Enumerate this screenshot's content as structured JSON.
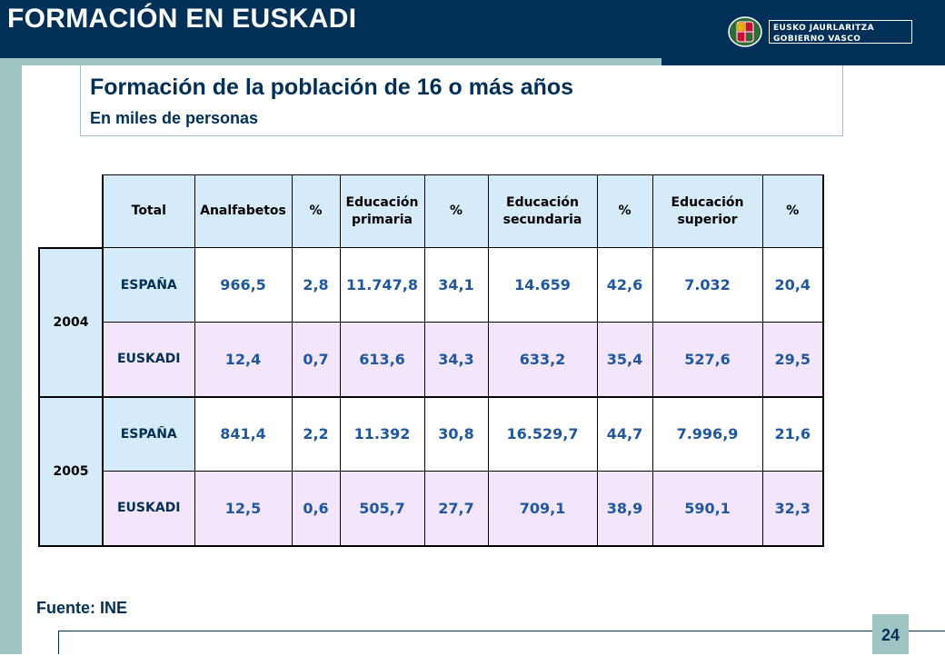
{
  "header": {
    "section_title": "FORMACIÓN EN EUSKADI",
    "logo_line1": "EUSKO JAURLARITZA",
    "logo_line2": "GOBIERNO VASCO"
  },
  "title": {
    "main": "Formación de la población de 16 o más años",
    "sub": "En miles de personas"
  },
  "table": {
    "columns": [
      "Total",
      "Analfabetos",
      "%",
      "Educación primaria",
      "%",
      "Educación secundaria",
      "%",
      "Educación superior",
      "%"
    ],
    "groups": [
      {
        "year": "2004",
        "rows": [
          {
            "label": "ESPAÑA",
            "values": [
              "966,5",
              "2,8",
              "11.747,8",
              "34,1",
              "14.659",
              "42,6",
              "7.032",
              "20,4"
            ]
          },
          {
            "label": "EUSKADI",
            "values": [
              "12,4",
              "0,7",
              "613,6",
              "34,3",
              "633,2",
              "35,4",
              "527,6",
              "29,5"
            ]
          }
        ]
      },
      {
        "year": "2005",
        "rows": [
          {
            "label": "ESPAÑA",
            "values": [
              "841,4",
              "2,2",
              "11.392",
              "30,8",
              "16.529,7",
              "44,7",
              "7.996,9",
              "21,6"
            ]
          },
          {
            "label": "EUSKADI",
            "values": [
              "12,5",
              "0,6",
              "505,7",
              "27,7",
              "709,1",
              "38,9",
              "590,1",
              "32,3"
            ]
          }
        ]
      }
    ]
  },
  "footer": {
    "source": "Fuente: INE",
    "page_number": "24"
  },
  "colors": {
    "navy": "#003057",
    "teal": "#9fc5c3",
    "header_blue": "#d6ebfa",
    "row_lilac": "#f3e6fb",
    "value_blue": "#1f57a0"
  }
}
